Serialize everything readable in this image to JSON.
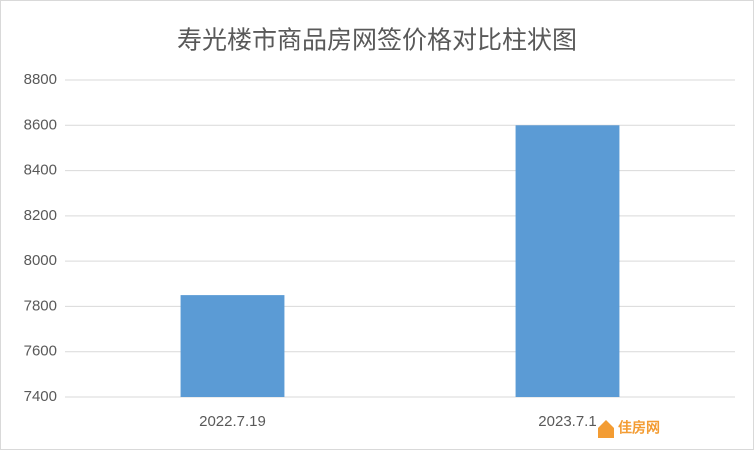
{
  "chart_data": {
    "type": "bar",
    "title": "寿光楼市商品房网签价格对比柱状图",
    "categories": [
      "2022.7.19",
      "2023.7.1"
    ],
    "values": [
      7850,
      8600
    ],
    "color": "#5b9bd5",
    "ylim": [
      7400,
      8800
    ],
    "yticks": [
      7400,
      7600,
      7800,
      8000,
      8200,
      8400,
      8600,
      8800
    ],
    "grid": true,
    "watermark": "佳房网"
  }
}
